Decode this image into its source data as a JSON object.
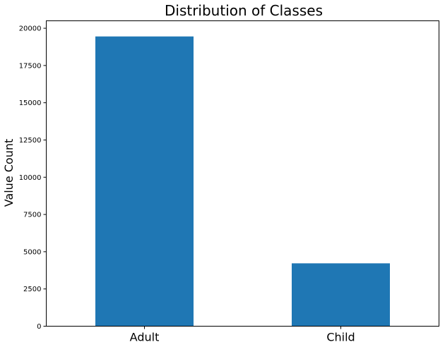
{
  "chart_data": {
    "type": "bar",
    "title": "Distribution of Classes",
    "xlabel": "",
    "ylabel": "Value Count",
    "categories": [
      "Adult",
      "Child"
    ],
    "values": [
      19450,
      4220
    ],
    "ylim": [
      0,
      20500
    ],
    "yticks": [
      0,
      2500,
      5000,
      7500,
      10000,
      12500,
      15000,
      17500,
      20000
    ],
    "bar_color": "#1f77b4",
    "grid": false,
    "legend": false
  }
}
